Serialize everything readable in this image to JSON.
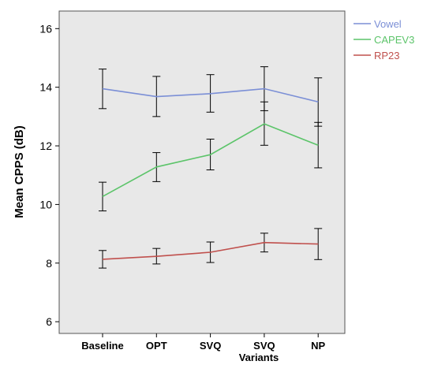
{
  "chart_data": {
    "type": "line",
    "categories": [
      "Baseline",
      "OPT",
      "SVQ",
      "SVQ",
      "NP"
    ],
    "xlabel": "Variants",
    "ylabel": "Mean CPPS (dB)",
    "ylim": [
      5.6,
      16.6
    ],
    "yticks": [
      6,
      8,
      10,
      12,
      14,
      16
    ],
    "grid": false,
    "legend_position": "top-right, outside plot",
    "plot_background": "#e8e8e8",
    "series": [
      {
        "name": "Vowel",
        "color": "#7b8fd6",
        "values": [
          13.95,
          13.68,
          13.78,
          13.95,
          13.5
        ],
        "error_low": [
          13.27,
          13.0,
          13.15,
          13.2,
          12.67
        ],
        "error_high": [
          14.62,
          14.37,
          14.43,
          14.7,
          14.32
        ]
      },
      {
        "name": "CAPEV3",
        "color": "#5cc46a",
        "values": [
          10.27,
          11.28,
          11.7,
          12.75,
          12.02
        ],
        "error_low": [
          9.78,
          10.78,
          11.18,
          12.02,
          11.25
        ],
        "error_high": [
          10.76,
          11.77,
          12.23,
          13.5,
          12.8
        ]
      },
      {
        "name": "RP23",
        "color": "#c0504d",
        "values": [
          8.13,
          8.23,
          8.37,
          8.7,
          8.65
        ],
        "error_low": [
          7.83,
          7.97,
          8.02,
          8.38,
          8.12
        ],
        "error_high": [
          8.43,
          8.5,
          8.72,
          9.02,
          9.18
        ]
      }
    ]
  }
}
